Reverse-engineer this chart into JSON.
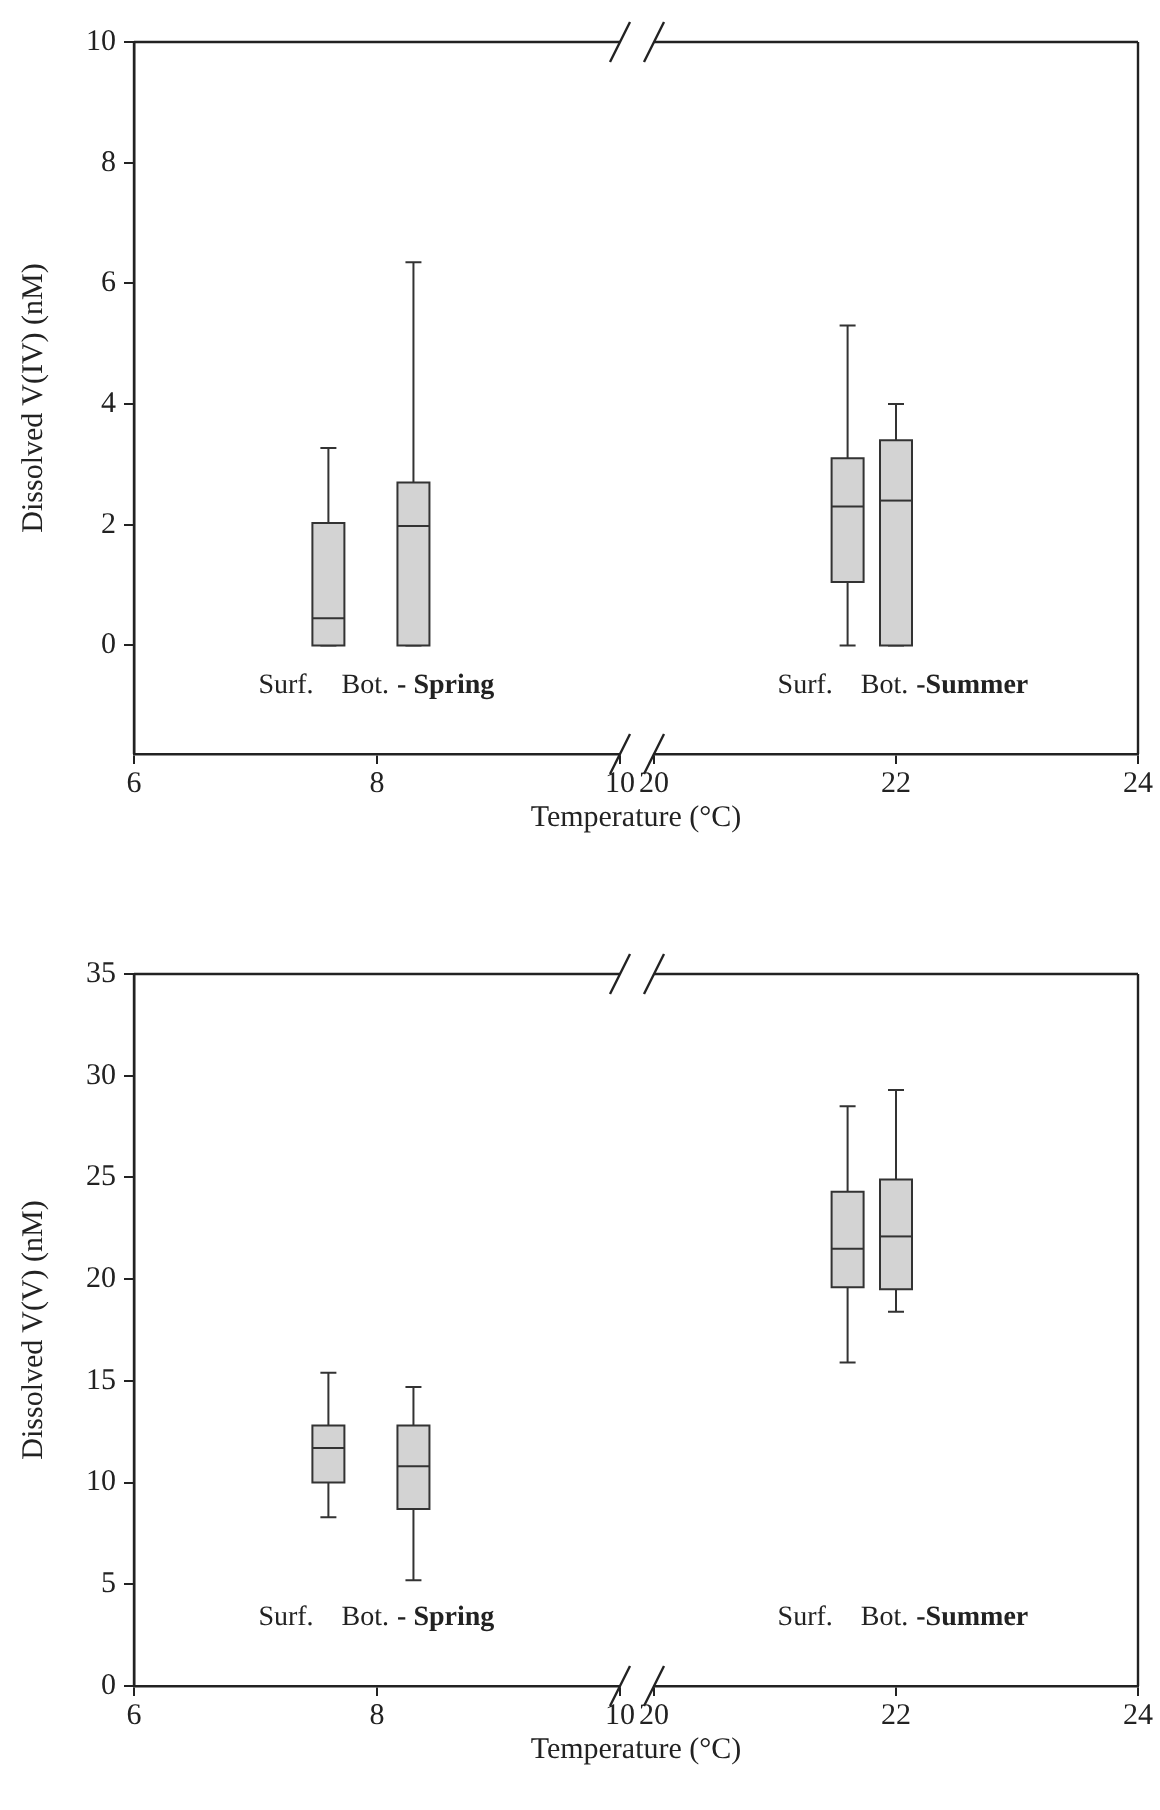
{
  "chart_data": [
    {
      "type": "box",
      "xlabel": "Temperature (°C)",
      "ylabel": "Dissolved V(IV) (nM)",
      "x": [
        7.6,
        8.3
      ],
      "series": [
        {
          "color": "#d3d3d3",
          "boxes": [
            {
              "low": 0,
              "q1": 0,
              "median": 0.45,
              "q3": 2.03,
              "high": 3.27
            },
            {
              "low": 0,
              "q1": 0,
              "median": 1.98,
              "q3": 2.7,
              "high": 6.35
            }
          ]
        }
      ],
      "xlim": [
        6,
        10
      ],
      "xticks": [
        6,
        8,
        10
      ],
      "ylim": [
        -1.8,
        10
      ],
      "yticks": [
        0,
        2,
        4,
        6,
        8,
        10
      ],
      "annotations": [
        "Surf.",
        "Bot.",
        "- Spring"
      ]
    },
    {
      "type": "box",
      "x": [
        21.6,
        22.0
      ],
      "series": [
        {
          "color": "#d3d3d3",
          "boxes": [
            {
              "low": 0,
              "q1": 1.05,
              "median": 2.3,
              "q3": 3.1,
              "high": 5.3
            },
            {
              "low": 0,
              "q1": 0,
              "median": 2.4,
              "q3": 3.4,
              "high": 4.0
            }
          ]
        }
      ],
      "xlim": [
        20,
        24
      ],
      "xticks": [
        20,
        22,
        24
      ],
      "ylim": [
        -1.8,
        10
      ],
      "tick_labels": "x",
      "annotations": [
        "Surf.",
        "Bot.",
        "-Summer"
      ]
    },
    {
      "type": "box",
      "xlabel": "Temperature (°C)",
      "ylabel": "Dissolved V(V) (nM)",
      "x": [
        7.6,
        8.3
      ],
      "series": [
        {
          "color": "#d3d3d3",
          "boxes": [
            {
              "low": 8.3,
              "q1": 10.0,
              "median": 11.7,
              "q3": 12.8,
              "high": 15.4
            },
            {
              "low": 5.2,
              "q1": 8.7,
              "median": 10.8,
              "q3": 12.8,
              "high": 14.7
            }
          ]
        }
      ],
      "xlim": [
        6,
        10
      ],
      "xticks": [
        6,
        8,
        10
      ],
      "ylim": [
        0,
        35
      ],
      "yticks": [
        0,
        5,
        10,
        15,
        20,
        25,
        30,
        35
      ],
      "annotations": [
        "Surf.",
        "Bot.",
        "- Spring"
      ]
    },
    {
      "type": "box",
      "x": [
        21.6,
        22.0
      ],
      "series": [
        {
          "color": "#d3d3d3",
          "boxes": [
            {
              "low": 15.9,
              "q1": 19.6,
              "median": 21.5,
              "q3": 24.3,
              "high": 28.5
            },
            {
              "low": 18.4,
              "q1": 19.5,
              "median": 22.1,
              "q3": 24.9,
              "high": 29.3
            }
          ]
        }
      ],
      "xlim": [
        20,
        24
      ],
      "xticks": [
        20,
        22,
        24
      ],
      "ylim": [
        0,
        35
      ],
      "tick_labels": "x",
      "annotations": [
        "Surf.",
        "Bot.",
        "-Summer"
      ]
    }
  ]
}
